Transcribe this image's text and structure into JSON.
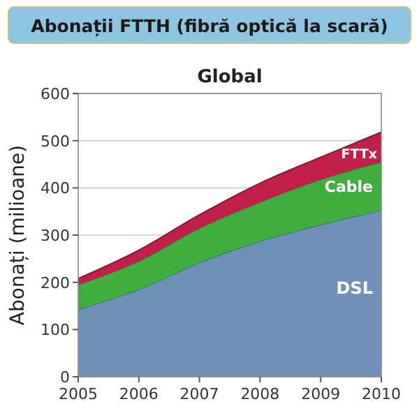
{
  "chart_data": {
    "type": "area",
    "title": "Abonații FTTH (fibră optică la scară)",
    "subtitle": "Global",
    "ylabel": "Abonați (milioane)",
    "stacked": true,
    "grid": "y",
    "x": [
      2005,
      2006,
      2007,
      2008,
      2009,
      2010
    ],
    "xlim": [
      2005,
      2010
    ],
    "xticks": [
      2005,
      2006,
      2007,
      2008,
      2009,
      2010
    ],
    "ylim": [
      0,
      600
    ],
    "yticks": [
      0,
      100,
      200,
      300,
      400,
      500,
      600
    ],
    "series": [
      {
        "name": "DSL",
        "color": "#6f90b8",
        "values": [
          143,
          185,
          242,
          287,
          322,
          353
        ]
      },
      {
        "name": "Cable",
        "color": "#3fae3f",
        "values": [
          52,
          60,
          73,
          83,
          96,
          102
        ]
      },
      {
        "name": "FTTx",
        "color": "#c41f4a",
        "values": [
          13,
          23,
          28,
          40,
          47,
          63
        ]
      }
    ]
  }
}
